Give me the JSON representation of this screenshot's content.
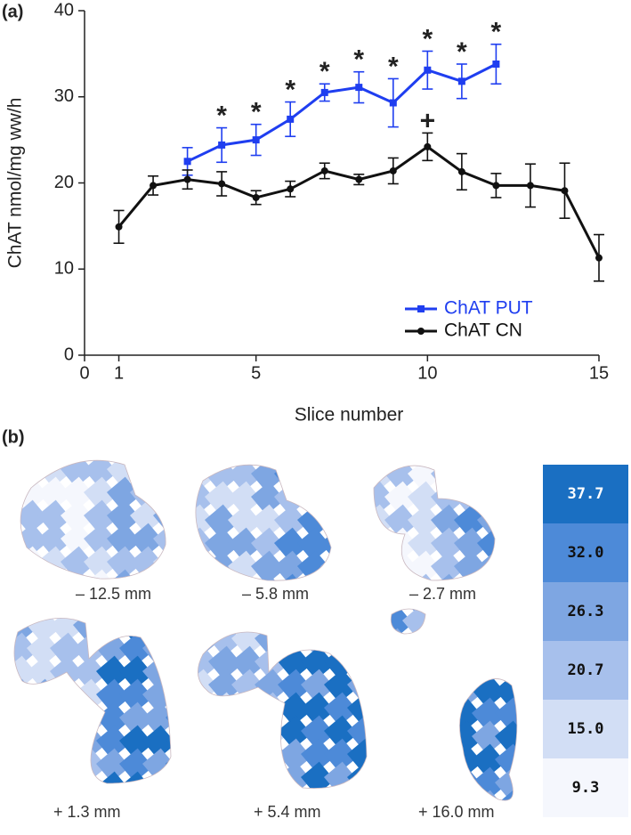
{
  "panel_labels": [
    "(a)",
    "(b)"
  ],
  "chart_data": {
    "type": "line",
    "xlabel": "Slice number",
    "ylabel": "ChAT nmol/mg ww/h",
    "xlim": [
      0,
      15
    ],
    "xticks": [
      0,
      1,
      5,
      10,
      15
    ],
    "ylim": [
      0,
      40
    ],
    "yticks": [
      0,
      10,
      20,
      30,
      40
    ],
    "legend": "lower right",
    "series": [
      {
        "name": "ChAT PUT",
        "color": "#1f3ef0",
        "marker": "square",
        "x": [
          3,
          4,
          5,
          6,
          7,
          8,
          9,
          10,
          11,
          12
        ],
        "values": [
          22.5,
          24.4,
          25.0,
          27.4,
          30.5,
          31.1,
          29.3,
          33.1,
          31.8,
          33.8
        ],
        "errors": [
          1.6,
          2.0,
          1.8,
          2.0,
          1.0,
          1.8,
          2.8,
          2.2,
          2.0,
          2.3
        ],
        "annotations": [
          null,
          "*",
          "*",
          "*",
          "*",
          "*",
          "*",
          "*",
          "*",
          "*"
        ]
      },
      {
        "name": "ChAT CN",
        "color": "#111111",
        "marker": "circle",
        "x": [
          1,
          2,
          3,
          4,
          5,
          6,
          7,
          8,
          9,
          10,
          11,
          12,
          13,
          14,
          15
        ],
        "values": [
          14.9,
          19.7,
          20.4,
          19.9,
          18.3,
          19.3,
          21.4,
          20.4,
          21.4,
          24.2,
          21.3,
          19.7,
          19.7,
          19.1,
          11.3
        ],
        "errors": [
          1.9,
          1.1,
          1.1,
          1.4,
          0.8,
          0.9,
          0.9,
          0.6,
          1.5,
          1.6,
          2.1,
          1.4,
          2.5,
          3.2,
          2.7
        ],
        "annotations": [
          null,
          null,
          null,
          null,
          null,
          null,
          null,
          null,
          null,
          "+",
          null,
          null,
          null,
          null,
          null
        ]
      }
    ]
  },
  "panel_b": {
    "slices": [
      "– 12.5 mm",
      "– 5.8 mm",
      "– 2.7 mm",
      "+ 1.3 mm",
      "+ 5.4 mm",
      "+ 16.0 mm"
    ],
    "colorbar": {
      "labels": [
        "37.7",
        "32.0",
        "26.3",
        "20.7",
        "15.0",
        "9.3"
      ],
      "colors": [
        "#1a6fc2",
        "#4d8ad8",
        "#7ea6e2",
        "#a7c0ec",
        "#d2def5",
        "#f5f7fd"
      ]
    }
  }
}
